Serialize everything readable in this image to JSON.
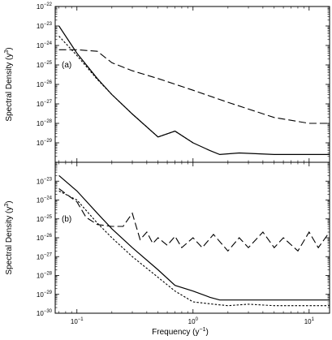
{
  "figure": {
    "xlabel": "Frequency (y",
    "xlabel_sup": "−1",
    "xlabel_close": ")"
  },
  "chart_data": [
    {
      "type": "line",
      "panel_label": "(a)",
      "ylabel": "Spectral Density (y",
      "ylabel_sup": "3",
      "ylabel_close": ")",
      "x_scale": "log",
      "y_scale": "log",
      "xlim": [
        0.065,
        15
      ],
      "ylim": [
        1e-30,
        1e-22
      ],
      "xticks": [
        {
          "value": 0.1,
          "base": "10",
          "exp": "−1"
        },
        {
          "value": 1,
          "base": "10",
          "exp": "0"
        },
        {
          "value": 10,
          "base": "10",
          "exp": "1"
        }
      ],
      "yticks": [
        {
          "value": 1e-29,
          "base": "10",
          "exp": "−29"
        },
        {
          "value": 1e-28,
          "base": "10",
          "exp": "−28"
        },
        {
          "value": 1e-27,
          "base": "10",
          "exp": "−27"
        },
        {
          "value": 1e-26,
          "base": "10",
          "exp": "−26"
        },
        {
          "value": 1e-25,
          "base": "10",
          "exp": "−25"
        },
        {
          "value": 1e-24,
          "base": "10",
          "exp": "−24"
        },
        {
          "value": 1e-23,
          "base": "10",
          "exp": "−23"
        },
        {
          "value": 1e-22,
          "base": "10",
          "exp": "−22"
        }
      ],
      "series": [
        {
          "style": "solid",
          "x": [
            0.07,
            0.1,
            0.15,
            0.2,
            0.3,
            0.5,
            0.7,
            1.0,
            1.4,
            1.7,
            2.5,
            5,
            10,
            15
          ],
          "y": [
            1e-23,
            4e-25,
            2e-26,
            3e-27,
            3e-28,
            2e-29,
            4e-29,
            1e-29,
            4e-30,
            2.5e-30,
            3e-30,
            2.5e-30,
            2.5e-30,
            2.5e-30
          ]
        },
        {
          "style": "dotted",
          "x": [
            0.07,
            0.1,
            0.15,
            0.2,
            0.3,
            0.5,
            0.7,
            1.0
          ],
          "y": [
            3e-24,
            3e-25,
            1.8e-26,
            3e-27,
            3e-28,
            2e-29,
            4e-29,
            1e-29
          ]
        },
        {
          "style": "dashed",
          "x": [
            0.07,
            0.1,
            0.15,
            0.2,
            0.3,
            0.5,
            1.0,
            2,
            5,
            10,
            15
          ],
          "y": [
            6e-25,
            6e-25,
            5e-25,
            1.3e-25,
            5e-26,
            2e-26,
            5e-27,
            1.2e-27,
            2e-28,
            1e-28,
            1e-28
          ]
        }
      ]
    },
    {
      "type": "line",
      "panel_label": "(b)",
      "ylabel": "Spectral Density (y",
      "ylabel_sup": "3",
      "ylabel_close": ")",
      "x_scale": "log",
      "y_scale": "log",
      "xlim": [
        0.065,
        15
      ],
      "ylim": [
        1e-30,
        1e-22
      ],
      "xticks": [
        {
          "value": 0.1,
          "base": "10",
          "exp": "−1"
        },
        {
          "value": 1,
          "base": "10",
          "exp": "0"
        },
        {
          "value": 10,
          "base": "10",
          "exp": "1"
        }
      ],
      "yticks": [
        {
          "value": 1e-30,
          "base": "10",
          "exp": "−30"
        },
        {
          "value": 1e-29,
          "base": "10",
          "exp": "−29"
        },
        {
          "value": 1e-28,
          "base": "10",
          "exp": "−28"
        },
        {
          "value": 1e-27,
          "base": "10",
          "exp": "−27"
        },
        {
          "value": 1e-26,
          "base": "10",
          "exp": "−26"
        },
        {
          "value": 1e-25,
          "base": "10",
          "exp": "−25"
        },
        {
          "value": 1e-24,
          "base": "10",
          "exp": "−24"
        },
        {
          "value": 1e-23,
          "base": "10",
          "exp": "−23"
        }
      ],
      "series": [
        {
          "style": "solid",
          "x": [
            0.07,
            0.1,
            0.15,
            0.2,
            0.3,
            0.5,
            0.7,
            1.0,
            1.4,
            1.7,
            2.5,
            5,
            10,
            15
          ],
          "y": [
            2e-23,
            3e-24,
            2e-25,
            3e-26,
            3e-27,
            2e-28,
            3e-29,
            1.5e-29,
            7e-30,
            5e-30,
            5e-30,
            5e-30,
            5e-30,
            5e-30
          ]
        },
        {
          "style": "dotted",
          "x": [
            0.07,
            0.1,
            0.15,
            0.2,
            0.3,
            0.5,
            0.7,
            1.0,
            1.5,
            2,
            3,
            5,
            10,
            15
          ],
          "y": [
            3e-24,
            1e-24,
            6e-26,
            1e-26,
            1e-27,
            8e-29,
            1.5e-29,
            4e-30,
            3e-30,
            2.5e-30,
            3e-30,
            2.5e-30,
            2.5e-30,
            2.5e-30
          ]
        },
        {
          "style": "dashed",
          "x": [
            0.07,
            0.1,
            0.12,
            0.15,
            0.2,
            0.25,
            0.3,
            0.35,
            0.4,
            0.45,
            0.5,
            0.6,
            0.7,
            0.8,
            1.0,
            1.2,
            1.5,
            2,
            2.5,
            3,
            4,
            5,
            6,
            8,
            10,
            12,
            15
          ],
          "y": [
            4e-24,
            8e-25,
            1.2e-25,
            5e-26,
            4e-26,
            4e-26,
            2e-25,
            8e-27,
            2e-26,
            5e-27,
            1e-26,
            4e-27,
            1.2e-26,
            3e-27,
            1e-26,
            3e-27,
            1.5e-26,
            2e-27,
            1e-26,
            3e-27,
            2e-26,
            3e-27,
            1e-26,
            2e-27,
            2e-26,
            3e-27,
            2e-26
          ]
        }
      ]
    }
  ]
}
